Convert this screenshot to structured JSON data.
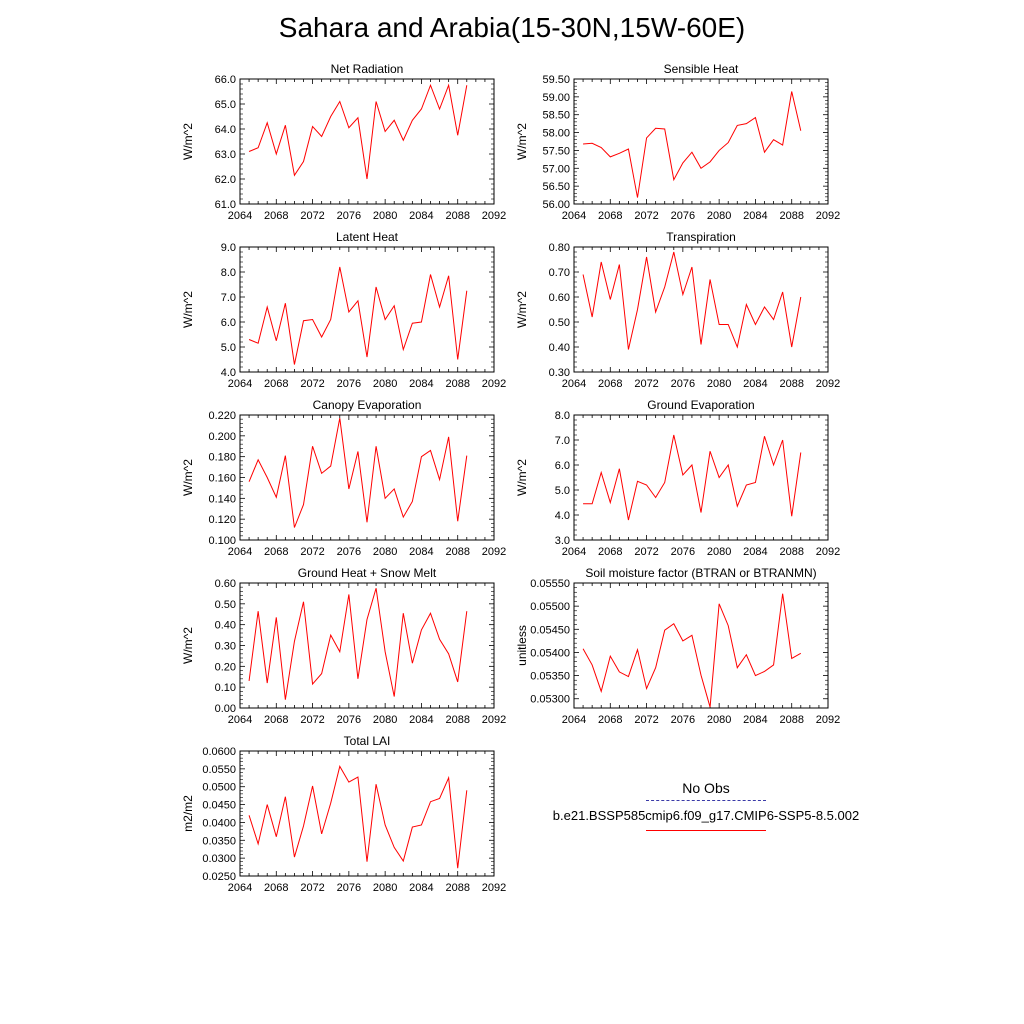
{
  "title": "Sahara and Arabia(15-30N,15W-60E)",
  "legend": {
    "obs_label": "No Obs",
    "case_label": "b.e21.BSSP585cmip6.f09_g17.CMIP6-SSP5-8.5.002",
    "obs_color": "#3a3aa8",
    "case_color": "#ff0000"
  },
  "chart_data": [
    {
      "type": "line",
      "title": "Net Radiation",
      "ylabel": "W/m^2",
      "xlim": [
        2064,
        2092
      ],
      "xticks": [
        2064,
        2068,
        2072,
        2076,
        2080,
        2084,
        2088,
        2092
      ],
      "ylim": [
        61.0,
        66.0
      ],
      "yticks": [
        "61.0",
        "62.0",
        "63.0",
        "64.0",
        "65.0",
        "66.0"
      ],
      "x": [
        2065,
        2066,
        2067,
        2068,
        2069,
        2070,
        2071,
        2072,
        2073,
        2074,
        2075,
        2076,
        2077,
        2078,
        2079,
        2080,
        2081,
        2082,
        2083,
        2084,
        2085,
        2086,
        2087,
        2088,
        2089
      ],
      "series": [
        {
          "values": [
            63.1,
            63.25,
            64.25,
            63.0,
            64.15,
            62.15,
            62.7,
            64.1,
            63.7,
            64.5,
            65.1,
            64.05,
            64.45,
            62.0,
            65.1,
            63.9,
            64.35,
            63.55,
            64.35,
            64.8,
            65.75,
            64.8,
            65.75,
            63.75,
            65.75
          ]
        }
      ]
    },
    {
      "type": "line",
      "title": "Sensible Heat",
      "ylabel": "W/m^2",
      "xlim": [
        2064,
        2092
      ],
      "xticks": [
        2064,
        2068,
        2072,
        2076,
        2080,
        2084,
        2088,
        2092
      ],
      "ylim": [
        56.0,
        59.5
      ],
      "yticks": [
        "56.00",
        "56.50",
        "57.00",
        "57.50",
        "58.00",
        "58.50",
        "59.00",
        "59.50"
      ],
      "x": [
        2065,
        2066,
        2067,
        2068,
        2069,
        2070,
        2071,
        2072,
        2073,
        2074,
        2075,
        2076,
        2077,
        2078,
        2079,
        2080,
        2081,
        2082,
        2083,
        2084,
        2085,
        2086,
        2087,
        2088,
        2089
      ],
      "series": [
        {
          "values": [
            57.68,
            57.7,
            57.58,
            57.32,
            57.42,
            57.54,
            56.18,
            57.85,
            58.12,
            58.1,
            56.68,
            57.15,
            57.45,
            57.0,
            57.18,
            57.5,
            57.72,
            58.2,
            58.25,
            58.42,
            57.45,
            57.8,
            57.65,
            59.15,
            58.05
          ]
        }
      ]
    },
    {
      "type": "line",
      "title": "Latent Heat",
      "ylabel": "W/m^2",
      "xlim": [
        2064,
        2092
      ],
      "xticks": [
        2064,
        2068,
        2072,
        2076,
        2080,
        2084,
        2088,
        2092
      ],
      "ylim": [
        4.0,
        9.0
      ],
      "yticks": [
        "4.0",
        "5.0",
        "6.0",
        "7.0",
        "8.0",
        "9.0"
      ],
      "x": [
        2065,
        2066,
        2067,
        2068,
        2069,
        2070,
        2071,
        2072,
        2073,
        2074,
        2075,
        2076,
        2077,
        2078,
        2079,
        2080,
        2081,
        2082,
        2083,
        2084,
        2085,
        2086,
        2087,
        2088,
        2089
      ],
      "series": [
        {
          "values": [
            5.3,
            5.15,
            6.6,
            5.25,
            6.75,
            4.3,
            6.05,
            6.1,
            5.4,
            6.1,
            8.2,
            6.4,
            6.85,
            4.6,
            7.4,
            6.1,
            6.65,
            4.9,
            5.95,
            6.0,
            7.9,
            6.6,
            7.85,
            4.5,
            7.25
          ]
        }
      ]
    },
    {
      "type": "line",
      "title": "Transpiration",
      "ylabel": "W/m^2",
      "xlim": [
        2064,
        2092
      ],
      "xticks": [
        2064,
        2068,
        2072,
        2076,
        2080,
        2084,
        2088,
        2092
      ],
      "ylim": [
        0.3,
        0.8
      ],
      "yticks": [
        "0.30",
        "0.40",
        "0.50",
        "0.60",
        "0.70",
        "0.80"
      ],
      "x": [
        2065,
        2066,
        2067,
        2068,
        2069,
        2070,
        2071,
        2072,
        2073,
        2074,
        2075,
        2076,
        2077,
        2078,
        2079,
        2080,
        2081,
        2082,
        2083,
        2084,
        2085,
        2086,
        2087,
        2088,
        2089
      ],
      "series": [
        {
          "values": [
            0.69,
            0.52,
            0.74,
            0.59,
            0.73,
            0.39,
            0.55,
            0.76,
            0.54,
            0.64,
            0.78,
            0.61,
            0.72,
            0.41,
            0.67,
            0.49,
            0.49,
            0.4,
            0.57,
            0.49,
            0.56,
            0.51,
            0.62,
            0.4,
            0.6
          ]
        }
      ]
    },
    {
      "type": "line",
      "title": "Canopy Evaporation",
      "ylabel": "W/m^2",
      "xlim": [
        2064,
        2092
      ],
      "xticks": [
        2064,
        2068,
        2072,
        2076,
        2080,
        2084,
        2088,
        2092
      ],
      "ylim": [
        0.1,
        0.22
      ],
      "yticks": [
        "0.100",
        "0.120",
        "0.140",
        "0.160",
        "0.180",
        "0.200",
        "0.220"
      ],
      "x": [
        2065,
        2066,
        2067,
        2068,
        2069,
        2070,
        2071,
        2072,
        2073,
        2074,
        2075,
        2076,
        2077,
        2078,
        2079,
        2080,
        2081,
        2082,
        2083,
        2084,
        2085,
        2086,
        2087,
        2088,
        2089
      ],
      "series": [
        {
          "values": [
            0.156,
            0.177,
            0.16,
            0.141,
            0.181,
            0.112,
            0.134,
            0.19,
            0.164,
            0.171,
            0.217,
            0.149,
            0.185,
            0.117,
            0.19,
            0.14,
            0.149,
            0.122,
            0.137,
            0.18,
            0.186,
            0.158,
            0.199,
            0.118,
            0.181
          ]
        }
      ]
    },
    {
      "type": "line",
      "title": "Ground Evaporation",
      "ylabel": "W/m^2",
      "xlim": [
        2064,
        2092
      ],
      "xticks": [
        2064,
        2068,
        2072,
        2076,
        2080,
        2084,
        2088,
        2092
      ],
      "ylim": [
        3.0,
        8.0
      ],
      "yticks": [
        "3.0",
        "4.0",
        "5.0",
        "6.0",
        "7.0",
        "8.0"
      ],
      "x": [
        2065,
        2066,
        2067,
        2068,
        2069,
        2070,
        2071,
        2072,
        2073,
        2074,
        2075,
        2076,
        2077,
        2078,
        2079,
        2080,
        2081,
        2082,
        2083,
        2084,
        2085,
        2086,
        2087,
        2088,
        2089
      ],
      "series": [
        {
          "values": [
            4.45,
            4.45,
            5.7,
            4.5,
            5.85,
            3.8,
            5.35,
            5.2,
            4.7,
            5.3,
            7.2,
            5.6,
            6.0,
            4.1,
            6.55,
            5.5,
            6.0,
            4.35,
            5.2,
            5.3,
            7.15,
            6.0,
            7.0,
            3.95,
            6.5
          ]
        }
      ]
    },
    {
      "type": "line",
      "title": "Ground Heat + Snow Melt",
      "ylabel": "W/m^2",
      "xlim": [
        2064,
        2092
      ],
      "xticks": [
        2064,
        2068,
        2072,
        2076,
        2080,
        2084,
        2088,
        2092
      ],
      "ylim": [
        0.0,
        0.6
      ],
      "yticks": [
        "0.00",
        "0.10",
        "0.20",
        "0.30",
        "0.40",
        "0.50",
        "0.60"
      ],
      "x": [
        2065,
        2066,
        2067,
        2068,
        2069,
        2070,
        2071,
        2072,
        2073,
        2074,
        2075,
        2076,
        2077,
        2078,
        2079,
        2080,
        2081,
        2082,
        2083,
        2084,
        2085,
        2086,
        2087,
        2088,
        2089
      ],
      "series": [
        {
          "values": [
            0.13,
            0.465,
            0.12,
            0.435,
            0.04,
            0.32,
            0.51,
            0.115,
            0.165,
            0.35,
            0.27,
            0.545,
            0.14,
            0.425,
            0.575,
            0.27,
            0.055,
            0.455,
            0.215,
            0.375,
            0.455,
            0.33,
            0.26,
            0.125,
            0.465
          ]
        }
      ]
    },
    {
      "type": "line",
      "title": "Soil moisture factor (BTRAN or BTRANMN)",
      "ylabel": "unitless",
      "xlim": [
        2064,
        2092
      ],
      "xticks": [
        2064,
        2068,
        2072,
        2076,
        2080,
        2084,
        2088,
        2092
      ],
      "ylim": [
        0.0528,
        0.0555
      ],
      "yticks": [
        "0.05300",
        "0.05350",
        "0.05400",
        "0.05450",
        "0.05500",
        "0.05550"
      ],
      "x": [
        2065,
        2066,
        2067,
        2068,
        2069,
        2070,
        2071,
        2072,
        2073,
        2074,
        2075,
        2076,
        2077,
        2078,
        2079,
        2080,
        2081,
        2082,
        2083,
        2084,
        2085,
        2086,
        2087,
        2088,
        2089
      ],
      "series": [
        {
          "values": [
            0.05408,
            0.05373,
            0.05316,
            0.05392,
            0.05358,
            0.05348,
            0.05406,
            0.05322,
            0.05367,
            0.05448,
            0.05462,
            0.05425,
            0.05437,
            0.05351,
            0.05282,
            0.05505,
            0.05458,
            0.05367,
            0.05395,
            0.0535,
            0.05359,
            0.05373,
            0.05527,
            0.05387,
            0.05398
          ]
        }
      ]
    },
    {
      "type": "line",
      "title": "Total LAI",
      "ylabel": "m2/m2",
      "xlim": [
        2064,
        2092
      ],
      "xticks": [
        2064,
        2068,
        2072,
        2076,
        2080,
        2084,
        2088,
        2092
      ],
      "ylim": [
        0.025,
        0.06
      ],
      "yticks": [
        "0.0250",
        "0.0300",
        "0.0350",
        "0.0400",
        "0.0450",
        "0.0500",
        "0.0550",
        "0.0600"
      ],
      "x": [
        2065,
        2066,
        2067,
        2068,
        2069,
        2070,
        2071,
        2072,
        2073,
        2074,
        2075,
        2076,
        2077,
        2078,
        2079,
        2080,
        2081,
        2082,
        2083,
        2084,
        2085,
        2086,
        2087,
        2088,
        2089
      ],
      "series": [
        {
          "values": [
            0.042,
            0.034,
            0.045,
            0.036,
            0.0472,
            0.0303,
            0.039,
            0.0502,
            0.0368,
            0.0454,
            0.0557,
            0.0513,
            0.0527,
            0.029,
            0.0507,
            0.0393,
            0.033,
            0.0292,
            0.0387,
            0.0393,
            0.0458,
            0.0467,
            0.0525,
            0.0272,
            0.049
          ]
        }
      ]
    }
  ]
}
